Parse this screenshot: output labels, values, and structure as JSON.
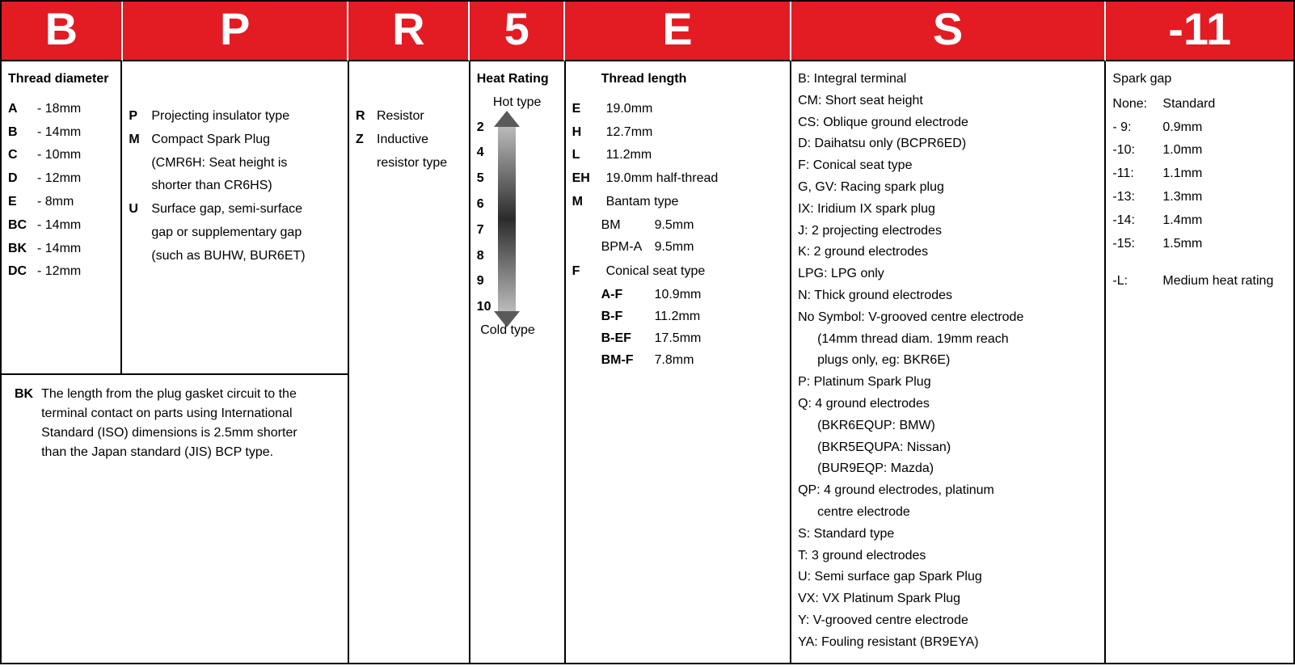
{
  "header": {
    "cells": [
      "B",
      "P",
      "R",
      "5",
      "E",
      "S",
      "-11"
    ]
  },
  "col_B": {
    "title": "Thread diameter",
    "items": [
      {
        "code": "A",
        "val": "- 18mm"
      },
      {
        "code": "B",
        "val": "- 14mm"
      },
      {
        "code": "C",
        "val": "- 10mm"
      },
      {
        "code": "D",
        "val": "- 12mm"
      },
      {
        "code": "E",
        "val": "- 8mm"
      },
      {
        "code": "BC",
        "val": "- 14mm"
      },
      {
        "code": "BK",
        "val": "- 14mm"
      },
      {
        "code": "DC",
        "val": "- 12mm"
      }
    ]
  },
  "col_P": {
    "items": [
      {
        "code": "P",
        "val": "Projecting insulator type"
      },
      {
        "code": "M",
        "val": "Compact Spark Plug"
      },
      {
        "code": "",
        "val": "(CMR6H: Seat height is"
      },
      {
        "code": "",
        "val": " shorter than CR6HS)"
      },
      {
        "code": "U",
        "val": "Surface gap, semi-surface"
      },
      {
        "code": "",
        "val": "gap or supplementary gap"
      },
      {
        "code": "",
        "val": "(such as BUHW, BUR6ET)"
      }
    ]
  },
  "note_BK": {
    "code": "BK",
    "text1": "The length from the plug gasket circuit to the",
    "text2": "terminal contact on parts using International",
    "text3": "Standard (ISO) dimensions is 2.5mm shorter",
    "text4": "than the Japan standard (JIS) BCP type."
  },
  "col_R": {
    "items": [
      {
        "code": "R",
        "val": "Resistor"
      },
      {
        "code": "Z",
        "val": "Inductive"
      },
      {
        "code": "",
        "val": "resistor type"
      }
    ]
  },
  "col_5": {
    "title": "Heat Rating",
    "hot": "Hot type",
    "cold": "Cold type",
    "nums": [
      "2",
      "4",
      "5",
      "6",
      "7",
      "8",
      "9",
      "10"
    ]
  },
  "col_E": {
    "title": "Thread length",
    "main": [
      {
        "code": "E",
        "val": "19.0mm"
      },
      {
        "code": "H",
        "val": "12.7mm"
      },
      {
        "code": "L",
        "val": "11.2mm"
      },
      {
        "code": "EH",
        "val": "19.0mm half-thread"
      },
      {
        "code": "M",
        "val": "Bantam type"
      }
    ],
    "bantam": [
      {
        "code": "BM",
        "val": "9.5mm"
      },
      {
        "code": "BPM-A",
        "val": "9.5mm"
      }
    ],
    "conical_label": {
      "code": "F",
      "val": "Conical seat type"
    },
    "conical": [
      {
        "code": "A-F",
        "val": "10.9mm"
      },
      {
        "code": "B-F",
        "val": "11.2mm"
      },
      {
        "code": "B-EF",
        "val": "17.5mm"
      },
      {
        "code": "BM-F",
        "val": "7.8mm"
      }
    ]
  },
  "col_S": {
    "lines": [
      "B: Integral terminal",
      "CM: Short seat height",
      "CS: Oblique ground electrode",
      "D: Daihatsu only (BCPR6ED)",
      "F: Conical seat type",
      "G, GV: Racing spark plug",
      "IX: Iridium IX spark plug",
      "J: 2 projecting electrodes",
      "K: 2 ground electrodes",
      "LPG: LPG only",
      "N: Thick ground electrodes",
      "No Symbol: V-grooved centre electrode",
      "(14mm thread diam. 19mm reach",
      "plugs only, eg: BKR6E)",
      "P: Platinum Spark Plug",
      "Q: 4 ground electrodes",
      "(BKR6EQUP: BMW)",
      "(BKR5EQUPA: Nissan)",
      "(BUR9EQP: Mazda)",
      "QP: 4 ground electrodes, platinum",
      "centre electrode",
      "S: Standard type",
      "T: 3 ground electrodes",
      "U: Semi surface gap Spark Plug",
      "VX: VX Platinum Spark Plug",
      "Y: V-grooved centre electrode",
      "YA: Fouling resistant (BR9EYA)"
    ],
    "indent_idx": [
      12,
      13,
      16,
      17,
      18,
      20
    ]
  },
  "col_11": {
    "title": "Spark gap",
    "rows": [
      {
        "k": "None:",
        "v": "Standard"
      },
      {
        "k": "- 9:",
        "v": "0.9mm"
      },
      {
        "k": "-10:",
        "v": "1.0mm"
      },
      {
        "k": "-11:",
        "v": "1.1mm"
      },
      {
        "k": "-13:",
        "v": "1.3mm"
      },
      {
        "k": "-14:",
        "v": "1.4mm"
      },
      {
        "k": "-15:",
        "v": "1.5mm"
      }
    ],
    "extra": {
      "k": "-L:",
      "v": "Medium heat rating"
    }
  },
  "colors": {
    "header_bg": "#e31b23",
    "header_fg": "#ffffff",
    "border": "#000000"
  }
}
